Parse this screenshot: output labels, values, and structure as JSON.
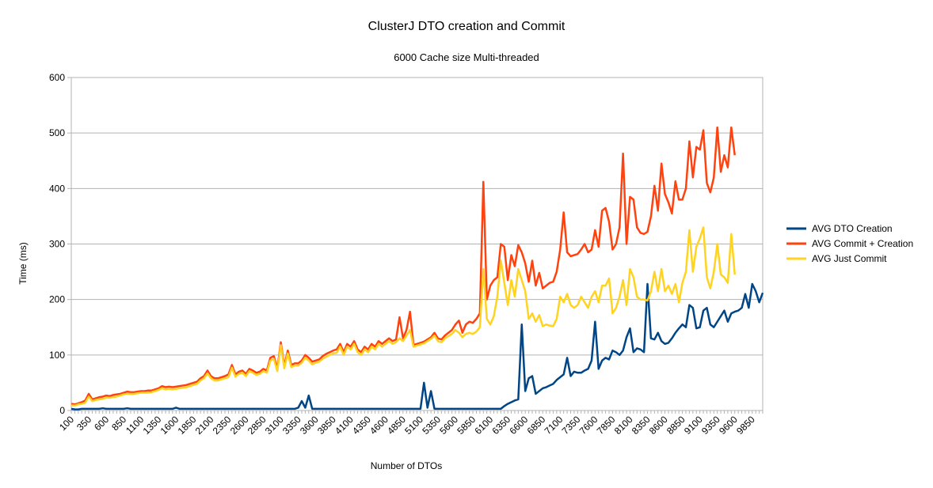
{
  "chart_data": {
    "type": "line",
    "title": "ClusterJ DTO creation and Commit",
    "subtitle": "6000 Cache size Multi-threaded",
    "xlabel": "Number of DTOs",
    "ylabel": "Time (ms)",
    "ylim": [
      0,
      600
    ],
    "yticks": [
      0,
      100,
      200,
      300,
      400,
      500,
      600
    ],
    "x_start": 100,
    "x_step": 50,
    "x_tick_labels": [
      "100",
      "350",
      "600",
      "850",
      "1100",
      "1350",
      "1600",
      "1850",
      "2100",
      "2350",
      "2600",
      "2850",
      "3100",
      "3350",
      "3600",
      "3850",
      "4100",
      "4350",
      "4600",
      "4850",
      "5100",
      "5350",
      "5600",
      "5850",
      "6100",
      "6350",
      "6600",
      "6850",
      "7100",
      "7350",
      "7600",
      "7850",
      "8100",
      "8350",
      "8600",
      "8850",
      "9100",
      "9350",
      "9600",
      "9850"
    ],
    "grid": "horizontal",
    "legend_position": "right",
    "series": [
      {
        "name": "AVG DTO Creation",
        "color": "#004586",
        "values": [
          3,
          2,
          2,
          3,
          3,
          3,
          3,
          3,
          3,
          4,
          3,
          3,
          3,
          3,
          3,
          3,
          4,
          3,
          3,
          3,
          3,
          3,
          3,
          3,
          3,
          3,
          3,
          3,
          3,
          3,
          5,
          3,
          3,
          3,
          3,
          3,
          3,
          3,
          3,
          3,
          3,
          3,
          3,
          3,
          3,
          3,
          3,
          3,
          3,
          3,
          3,
          3,
          3,
          3,
          3,
          3,
          3,
          3,
          3,
          3,
          3,
          3,
          3,
          3,
          3,
          5,
          17,
          5,
          27,
          3,
          3,
          3,
          3,
          3,
          3,
          3,
          3,
          3,
          3,
          3,
          3,
          3,
          3,
          3,
          3,
          3,
          3,
          3,
          3,
          3,
          3,
          3,
          3,
          3,
          3,
          3,
          3,
          3,
          3,
          3,
          3,
          50,
          5,
          35,
          3,
          3,
          3,
          3,
          3,
          3,
          3,
          3,
          3,
          3,
          3,
          3,
          3,
          3,
          3,
          3,
          3,
          3,
          3,
          3,
          8,
          12,
          15,
          18,
          20,
          155,
          35,
          58,
          62,
          30,
          35,
          40,
          42,
          45,
          48,
          55,
          60,
          65,
          95,
          62,
          70,
          68,
          68,
          72,
          75,
          90,
          160,
          75,
          90,
          95,
          92,
          108,
          105,
          100,
          108,
          132,
          148,
          105,
          112,
          110,
          105,
          228,
          130,
          128,
          140,
          125,
          120,
          122,
          130,
          140,
          148,
          155,
          150,
          190,
          185,
          148,
          150,
          180,
          185,
          155,
          150,
          160,
          170,
          180,
          160,
          175,
          178,
          180,
          185,
          210,
          185,
          228,
          215,
          195,
          212
        ]
      },
      {
        "name": "AVG Commit + Creation",
        "color": "#ff420e",
        "values": [
          12,
          11,
          13,
          15,
          18,
          30,
          20,
          22,
          24,
          25,
          27,
          26,
          28,
          29,
          30,
          32,
          34,
          33,
          33,
          34,
          35,
          35,
          36,
          36,
          38,
          40,
          44,
          42,
          43,
          42,
          43,
          44,
          45,
          46,
          48,
          50,
          52,
          58,
          62,
          72,
          62,
          58,
          58,
          60,
          62,
          65,
          82,
          65,
          70,
          72,
          66,
          75,
          72,
          68,
          70,
          75,
          72,
          95,
          98,
          75,
          123,
          80,
          108,
          82,
          85,
          85,
          90,
          100,
          95,
          88,
          90,
          92,
          98,
          102,
          105,
          108,
          110,
          120,
          105,
          120,
          115,
          125,
          110,
          105,
          115,
          110,
          120,
          115,
          125,
          120,
          125,
          130,
          125,
          128,
          168,
          130,
          145,
          178,
          118,
          120,
          122,
          124,
          128,
          132,
          140,
          130,
          128,
          135,
          140,
          145,
          155,
          162,
          140,
          155,
          160,
          158,
          165,
          175,
          412,
          200,
          225,
          235,
          240,
          300,
          295,
          235,
          280,
          260,
          298,
          285,
          265,
          232,
          270,
          225,
          248,
          220,
          225,
          230,
          232,
          250,
          290,
          357,
          285,
          278,
          280,
          282,
          290,
          300,
          285,
          290,
          325,
          295,
          360,
          365,
          340,
          290,
          300,
          330,
          463,
          300,
          385,
          380,
          330,
          320,
          318,
          322,
          350,
          405,
          360,
          445,
          390,
          375,
          355,
          413,
          380,
          380,
          400,
          485,
          420,
          475,
          470,
          505,
          410,
          393,
          420,
          510,
          430,
          460,
          438,
          510,
          460
        ]
      },
      {
        "name": "AVG Just Commit",
        "color": "#ffd320",
        "values": [
          9,
          9,
          11,
          12,
          14,
          25,
          17,
          19,
          20,
          21,
          23,
          23,
          24,
          25,
          27,
          29,
          30,
          30,
          30,
          31,
          32,
          32,
          32,
          33,
          35,
          37,
          40,
          38,
          39,
          38,
          39,
          40,
          41,
          42,
          44,
          46,
          48,
          54,
          58,
          67,
          58,
          54,
          54,
          56,
          58,
          60,
          77,
          61,
          66,
          68,
          62,
          71,
          68,
          64,
          66,
          71,
          68,
          90,
          93,
          71,
          118,
          76,
          103,
          78,
          81,
          81,
          86,
          95,
          90,
          83,
          86,
          88,
          93,
          97,
          100,
          103,
          104,
          115,
          100,
          115,
          110,
          120,
          105,
          100,
          110,
          105,
          115,
          110,
          120,
          115,
          120,
          125,
          120,
          123,
          130,
          125,
          135,
          145,
          115,
          117,
          119,
          121,
          125,
          129,
          135,
          125,
          123,
          130,
          134,
          138,
          145,
          140,
          132,
          138,
          140,
          138,
          142,
          150,
          255,
          165,
          155,
          170,
          205,
          270,
          230,
          190,
          235,
          205,
          255,
          235,
          215,
          165,
          175,
          160,
          172,
          152,
          155,
          153,
          152,
          165,
          205,
          195,
          210,
          190,
          185,
          190,
          205,
          195,
          185,
          205,
          215,
          195,
          225,
          225,
          238,
          175,
          185,
          205,
          235,
          190,
          255,
          240,
          205,
          200,
          200,
          198,
          215,
          250,
          215,
          255,
          215,
          225,
          210,
          228,
          195,
          230,
          250,
          325,
          250,
          295,
          310,
          330,
          240,
          220,
          250,
          300,
          245,
          240,
          230,
          318,
          245
        ]
      }
    ]
  }
}
